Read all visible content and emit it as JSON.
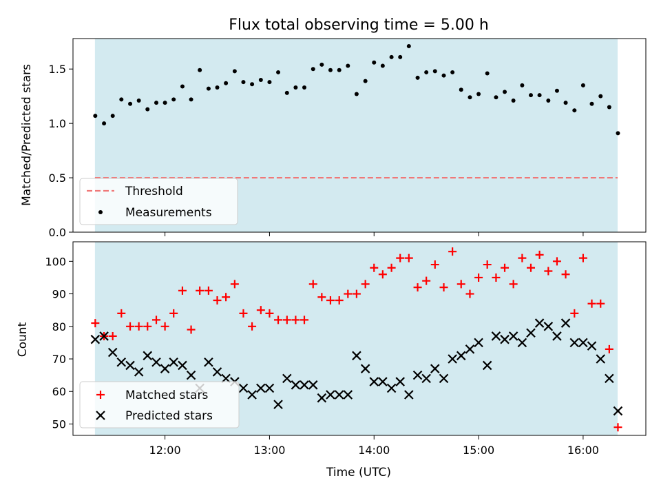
{
  "colors": {
    "span": "#d3eaf0",
    "threshold": "#f07878",
    "measurement": "#000000",
    "matched": "#ff0000",
    "predicted": "#000000"
  },
  "chart_data": [
    {
      "type": "scatter",
      "title": "Flux total observing time = 5.00 h",
      "xlabel": "",
      "ylabel": "Matched/Predicted stars",
      "xlim": [
        11.12,
        16.6
      ],
      "ylim": [
        0,
        1.78
      ],
      "yticks": [
        0.0,
        0.5,
        1.0,
        1.5
      ],
      "ytick_labels": [
        "0.0",
        "0.5",
        "1.0",
        "1.5"
      ],
      "xticks": [
        12,
        13,
        14,
        15,
        16
      ],
      "shaded_span": [
        11.33,
        16.33
      ],
      "legend_position": "lower-left",
      "threshold": {
        "name": "Threshold",
        "value": 0.5,
        "style": "dashed"
      },
      "series": [
        {
          "name": "Measurements",
          "x": [
            11.333,
            11.417,
            11.5,
            11.583,
            11.667,
            11.75,
            11.833,
            11.917,
            12.0,
            12.083,
            12.167,
            12.25,
            12.333,
            12.417,
            12.5,
            12.583,
            12.667,
            12.75,
            12.833,
            12.917,
            13.0,
            13.083,
            13.167,
            13.25,
            13.333,
            13.417,
            13.5,
            13.583,
            13.667,
            13.75,
            13.833,
            13.917,
            14.0,
            14.083,
            14.167,
            14.25,
            14.333,
            14.417,
            14.5,
            14.583,
            14.667,
            14.75,
            14.833,
            14.917,
            15.0,
            15.083,
            15.167,
            15.25,
            15.333,
            15.417,
            15.5,
            15.583,
            15.667,
            15.75,
            15.833,
            15.917,
            16.0,
            16.083,
            16.167,
            16.25,
            16.333
          ],
          "y": [
            1.07,
            1.0,
            1.07,
            1.22,
            1.18,
            1.21,
            1.13,
            1.19,
            1.19,
            1.22,
            1.34,
            1.22,
            1.49,
            1.32,
            1.33,
            1.37,
            1.48,
            1.38,
            1.36,
            1.4,
            1.38,
            1.47,
            1.28,
            1.33,
            1.33,
            1.5,
            1.54,
            1.49,
            1.49,
            1.53,
            1.27,
            1.39,
            1.56,
            1.53,
            1.61,
            1.61,
            1.71,
            1.42,
            1.47,
            1.48,
            1.44,
            1.47,
            1.31,
            1.24,
            1.27,
            1.46,
            1.24,
            1.29,
            1.21,
            1.35,
            1.26,
            1.26,
            1.21,
            1.3,
            1.19,
            1.12,
            1.35,
            1.18,
            1.25,
            1.15,
            0.91
          ]
        }
      ]
    },
    {
      "type": "scatter",
      "title": "",
      "xlabel": "Time (UTC)",
      "ylabel": "Count",
      "xlim": [
        11.12,
        16.6
      ],
      "ylim": [
        46.5,
        106
      ],
      "yticks": [
        50,
        60,
        70,
        80,
        90,
        100
      ],
      "xticks": [
        12,
        13,
        14,
        15,
        16
      ],
      "xtick_labels": [
        "12:00",
        "13:00",
        "14:00",
        "15:00",
        "16:00"
      ],
      "shaded_span": [
        11.33,
        16.33
      ],
      "legend_position": "lower-left",
      "series": [
        {
          "name": "Matched stars",
          "marker": "+",
          "x": [
            11.333,
            11.417,
            11.5,
            11.583,
            11.667,
            11.75,
            11.833,
            11.917,
            12.0,
            12.083,
            12.167,
            12.25,
            12.333,
            12.417,
            12.5,
            12.583,
            12.667,
            12.75,
            12.833,
            12.917,
            13.0,
            13.083,
            13.167,
            13.25,
            13.333,
            13.417,
            13.5,
            13.583,
            13.667,
            13.75,
            13.833,
            13.917,
            14.0,
            14.083,
            14.167,
            14.25,
            14.333,
            14.417,
            14.5,
            14.583,
            14.667,
            14.75,
            14.833,
            14.917,
            15.0,
            15.083,
            15.167,
            15.25,
            15.333,
            15.417,
            15.5,
            15.583,
            15.667,
            15.75,
            15.833,
            15.917,
            16.0,
            16.083,
            16.167,
            16.25,
            16.333
          ],
          "y": [
            81,
            77,
            77,
            84,
            80,
            80,
            80,
            82,
            80,
            84,
            91,
            79,
            91,
            91,
            88,
            89,
            93,
            84,
            80,
            85,
            84,
            82,
            82,
            82,
            82,
            93,
            89,
            88,
            88,
            90,
            90,
            93,
            98,
            96,
            98,
            101,
            101,
            92,
            94,
            99,
            92,
            103,
            93,
            90,
            95,
            99,
            95,
            98,
            93,
            101,
            98,
            102,
            97,
            100,
            96,
            84,
            101,
            87,
            87,
            73,
            49
          ]
        },
        {
          "name": "Predicted stars",
          "marker": "x",
          "x": [
            11.333,
            11.417,
            11.5,
            11.583,
            11.667,
            11.75,
            11.833,
            11.917,
            12.0,
            12.083,
            12.167,
            12.25,
            12.333,
            12.417,
            12.5,
            12.583,
            12.667,
            12.75,
            12.833,
            12.917,
            13.0,
            13.083,
            13.167,
            13.25,
            13.333,
            13.417,
            13.5,
            13.583,
            13.667,
            13.75,
            13.833,
            13.917,
            14.0,
            14.083,
            14.167,
            14.25,
            14.333,
            14.417,
            14.5,
            14.583,
            14.667,
            14.75,
            14.833,
            14.917,
            15.0,
            15.083,
            15.167,
            15.25,
            15.333,
            15.417,
            15.5,
            15.583,
            15.667,
            15.75,
            15.833,
            15.917,
            16.0,
            16.083,
            16.167,
            16.25,
            16.333
          ],
          "y": [
            76,
            77,
            72,
            69,
            68,
            66,
            71,
            69,
            67,
            69,
            68,
            65,
            61,
            69,
            66,
            64,
            63,
            61,
            59,
            61,
            61,
            56,
            64,
            62,
            62,
            62,
            58,
            59,
            59,
            59,
            71,
            67,
            63,
            63,
            61,
            63,
            59,
            65,
            64,
            67,
            64,
            70,
            71,
            73,
            75,
            68,
            77,
            76,
            77,
            75,
            78,
            81,
            80,
            77,
            81,
            75,
            75,
            74,
            70,
            64,
            54
          ]
        }
      ]
    }
  ]
}
